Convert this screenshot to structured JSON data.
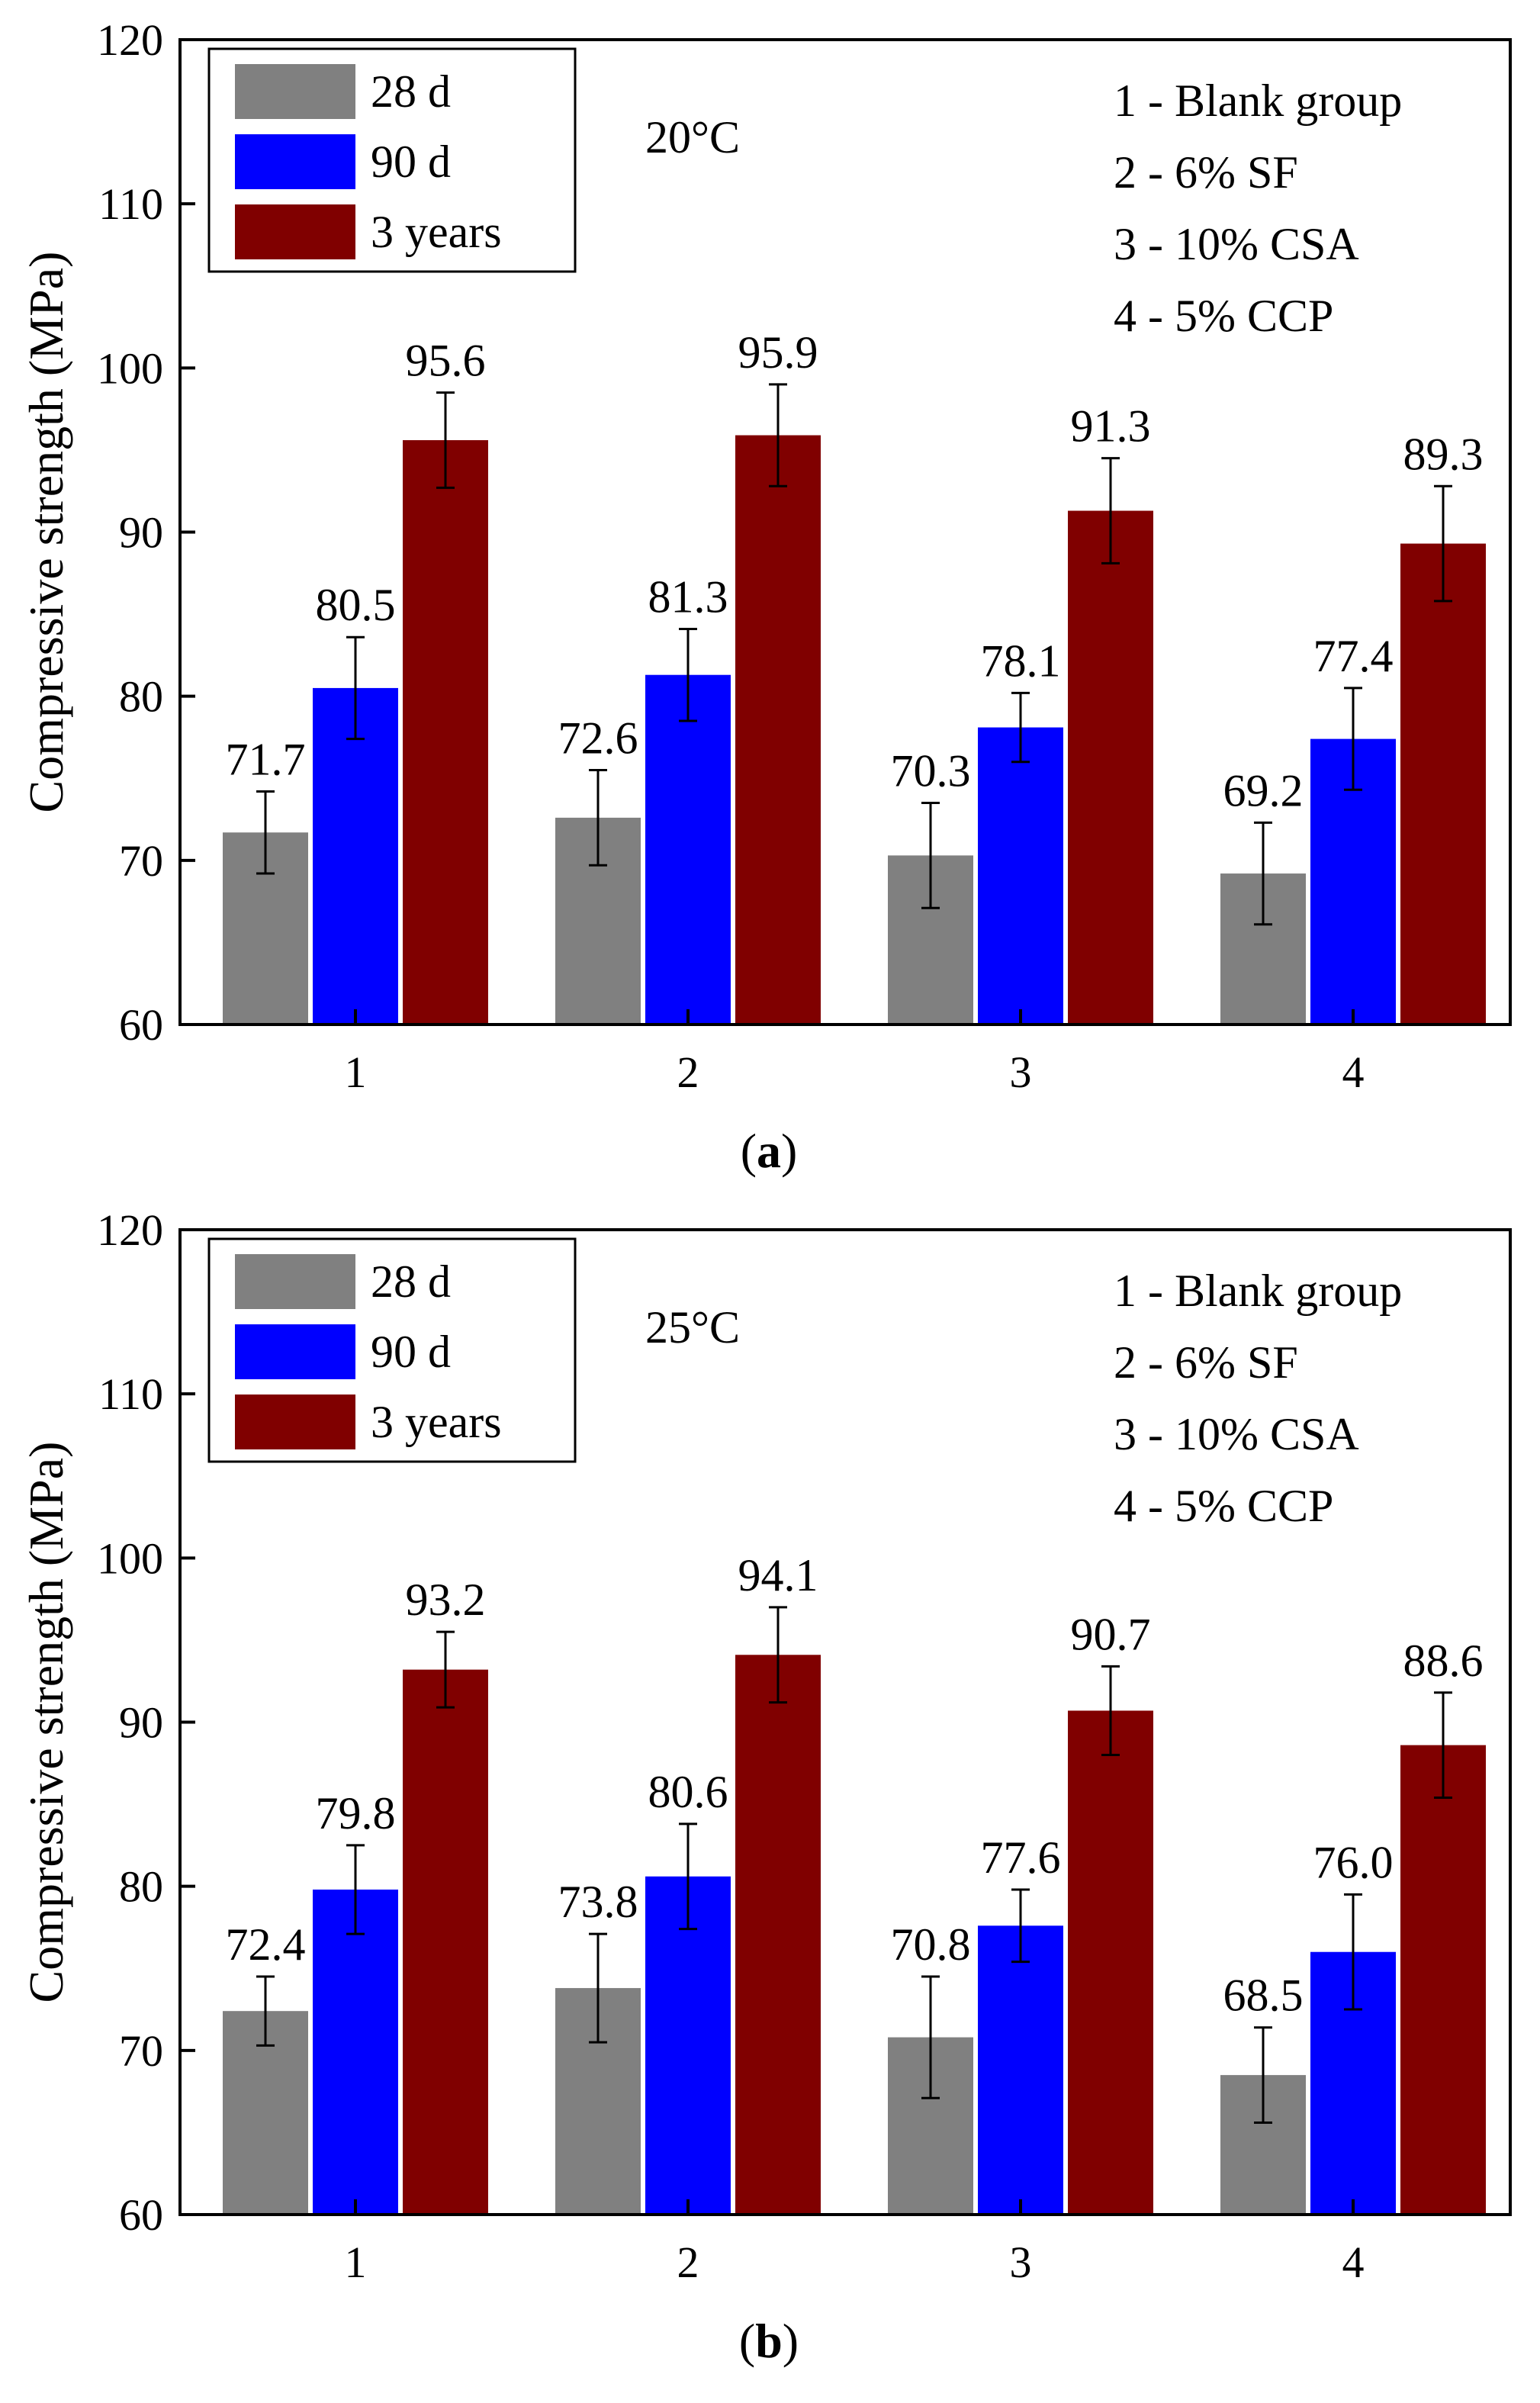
{
  "figure": {
    "colors": {
      "28d": "#808080",
      "90d": "#0000ff",
      "3y": "#800000",
      "axis": "#000000"
    }
  },
  "chart_data": [
    {
      "type": "bar",
      "panel_label": "a",
      "temperature_label": "20°C",
      "ylabel": "Compressive strength (MPa)",
      "xlabel": "",
      "ylim": [
        60,
        120
      ],
      "yticks": [
        60,
        70,
        80,
        90,
        100,
        110,
        120
      ],
      "categories": [
        "1",
        "2",
        "3",
        "4"
      ],
      "legend": [
        "28 d",
        "90 d",
        "3 years"
      ],
      "legend_position": "top-left",
      "group_notes": [
        "1 - Blank group",
        "2 - 6% SF",
        "3 - 10% CSA",
        "4 - 5% CCP"
      ],
      "series": [
        {
          "name": "28 d",
          "values": [
            71.7,
            72.6,
            70.3,
            69.2
          ],
          "errors": [
            2.5,
            2.9,
            3.2,
            3.1
          ],
          "labels": [
            "71.7",
            "72.6",
            "70.3",
            "69.2"
          ]
        },
        {
          "name": "90 d",
          "values": [
            80.5,
            81.3,
            78.1,
            77.4
          ],
          "errors": [
            3.1,
            2.8,
            2.1,
            3.1
          ],
          "labels": [
            "80.5",
            "81.3",
            "78.1",
            "77.4"
          ]
        },
        {
          "name": "3 years",
          "values": [
            95.6,
            95.9,
            91.3,
            89.3
          ],
          "errors": [
            2.9,
            3.1,
            3.2,
            3.5
          ],
          "labels": [
            "95.6",
            "95.9",
            "91.3",
            "89.3"
          ]
        }
      ]
    },
    {
      "type": "bar",
      "panel_label": "b",
      "temperature_label": "25°C",
      "ylabel": "Compressive strength (MPa)",
      "xlabel": "",
      "ylim": [
        60,
        120
      ],
      "yticks": [
        60,
        70,
        80,
        90,
        100,
        110,
        120
      ],
      "categories": [
        "1",
        "2",
        "3",
        "4"
      ],
      "legend": [
        "28 d",
        "90 d",
        "3 years"
      ],
      "legend_position": "top-left",
      "group_notes": [
        "1 - Blank group",
        "2 - 6% SF",
        "3 - 10% CSA",
        "4 - 5% CCP"
      ],
      "series": [
        {
          "name": "28 d",
          "values": [
            72.4,
            73.8,
            70.8,
            68.5
          ],
          "errors": [
            2.1,
            3.3,
            3.7,
            2.9
          ],
          "labels": [
            "72.4",
            "73.8",
            "70.8",
            "68.5"
          ]
        },
        {
          "name": "90 d",
          "values": [
            79.8,
            80.6,
            77.6,
            76.0
          ],
          "errors": [
            2.7,
            3.2,
            2.2,
            3.5
          ],
          "labels": [
            "79.8",
            "80.6",
            "77.6",
            "76.0"
          ]
        },
        {
          "name": "3 years",
          "values": [
            93.2,
            94.1,
            90.7,
            88.6
          ],
          "errors": [
            2.3,
            2.9,
            2.7,
            3.2
          ],
          "labels": [
            "93.2",
            "94.1",
            "90.7",
            "88.6"
          ]
        }
      ]
    }
  ]
}
